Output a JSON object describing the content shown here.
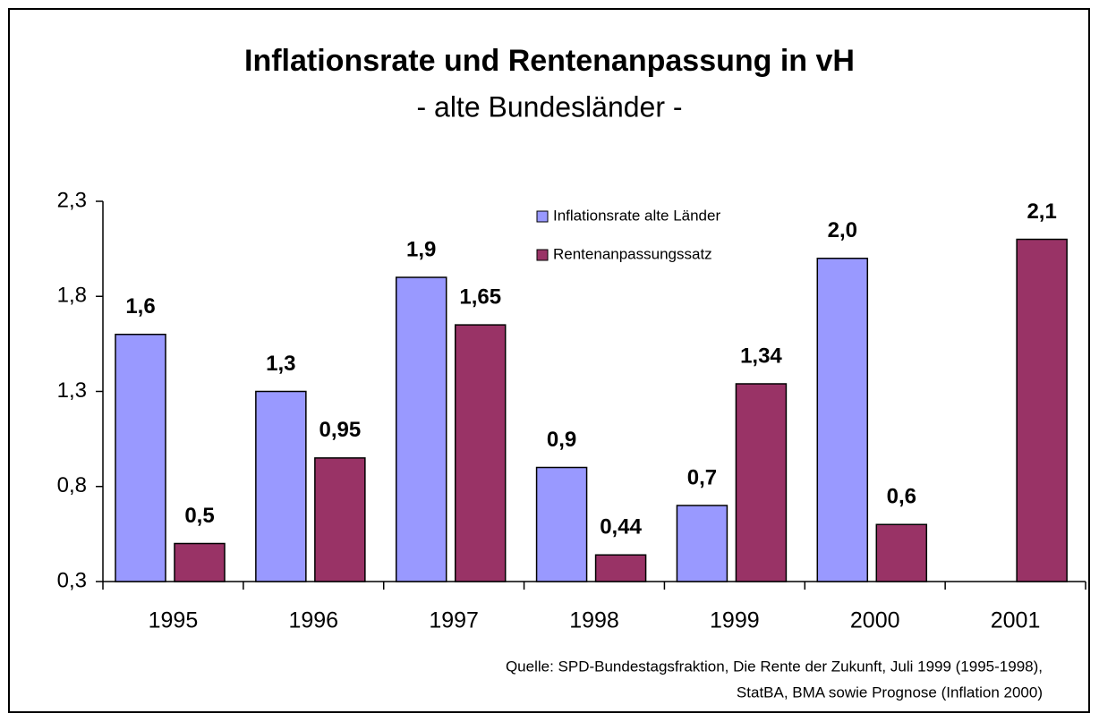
{
  "chart_data": {
    "type": "bar",
    "title": "Inflationsrate und Rentenanpassung in vH",
    "subtitle": "- alte Bundesländer -",
    "categories": [
      "1995",
      "1996",
      "1997",
      "1998",
      "1999",
      "2000",
      "2001"
    ],
    "series": [
      {
        "name": "Inflationsrate alte Länder",
        "color": "#9999ff",
        "values": [
          1.6,
          1.3,
          1.9,
          0.9,
          0.7,
          2.0,
          null
        ],
        "value_labels": [
          "1,6",
          "1,3",
          "1,9",
          "0,9",
          "0,7",
          "2,0",
          null
        ]
      },
      {
        "name": "Rentenanpassungssatz",
        "color": "#993366",
        "values": [
          0.5,
          0.95,
          1.65,
          0.44,
          1.34,
          0.6,
          2.1
        ],
        "value_labels": [
          "0,5",
          "0,95",
          "1,65",
          "0,44",
          "1,34",
          "0,6",
          "2,1"
        ]
      }
    ],
    "ylim": [
      0.3,
      2.3
    ],
    "yticks": [
      {
        "value": 0.3,
        "label": "0,3"
      },
      {
        "value": 0.8,
        "label": "0,8"
      },
      {
        "value": 1.3,
        "label": "1,3"
      },
      {
        "value": 1.8,
        "label": "1,8"
      },
      {
        "value": 2.3,
        "label": "2,3"
      }
    ],
    "source": [
      "Quelle: SPD-Bundestagsfraktion, Die Rente der Zukunft, Juli 1999 (1995-1998),",
      "StatBA, BMA sowie Prognose (Inflation 2000)"
    ]
  }
}
